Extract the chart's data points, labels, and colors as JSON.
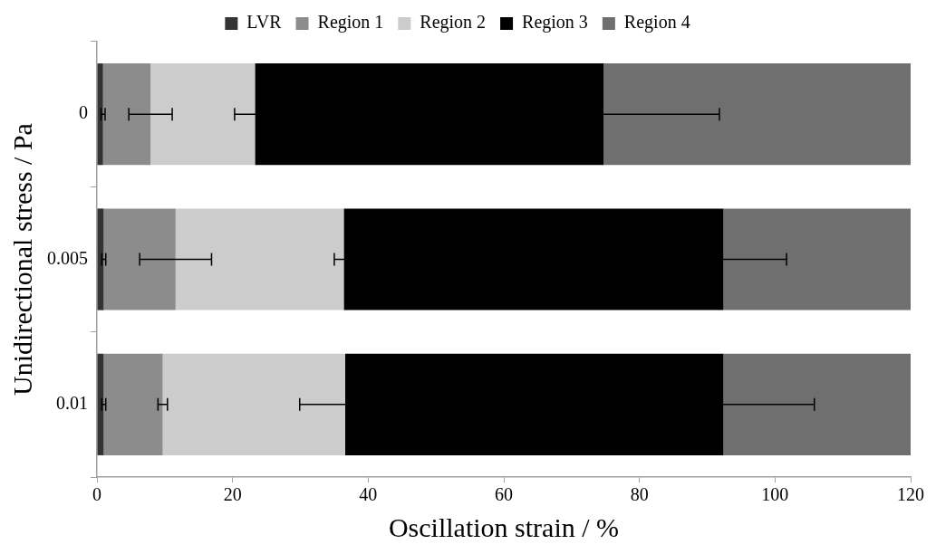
{
  "chart_data": {
    "type": "bar",
    "orientation": "horizontal",
    "stacked": true,
    "xlabel": "Oscillation strain / %",
    "ylabel": "Unidirectional stress / Pa",
    "categories": [
      "0",
      "0.005",
      "0.01"
    ],
    "xlim": [
      0,
      120
    ],
    "xticks": [
      0,
      20,
      40,
      60,
      80,
      100,
      120
    ],
    "grid": false,
    "legend": "top",
    "series": [
      {
        "name": "LVR",
        "color": "#333333",
        "values": [
          0.9,
          1.0,
          1.0
        ],
        "errors": [
          0.3,
          0.3,
          0.3
        ]
      },
      {
        "name": "Region 1",
        "color": "#8c8c8c",
        "values": [
          7.0,
          10.6,
          8.7
        ],
        "errors": [
          3.2,
          5.3,
          0.7
        ]
      },
      {
        "name": "Region 2",
        "color": "#cccccc",
        "values": [
          15.4,
          24.8,
          26.9
        ],
        "errors": [
          3.0,
          1.4,
          6.7
        ]
      },
      {
        "name": "Region 3",
        "color": "#000000",
        "values": [
          51.4,
          56.0,
          55.8
        ],
        "errors": [
          17.1,
          9.3,
          13.4
        ]
      },
      {
        "name": "Region 4",
        "color": "#6f6f6f",
        "values": [
          45.3,
          27.6,
          27.6
        ],
        "errors": [
          null,
          null,
          null
        ]
      }
    ]
  }
}
